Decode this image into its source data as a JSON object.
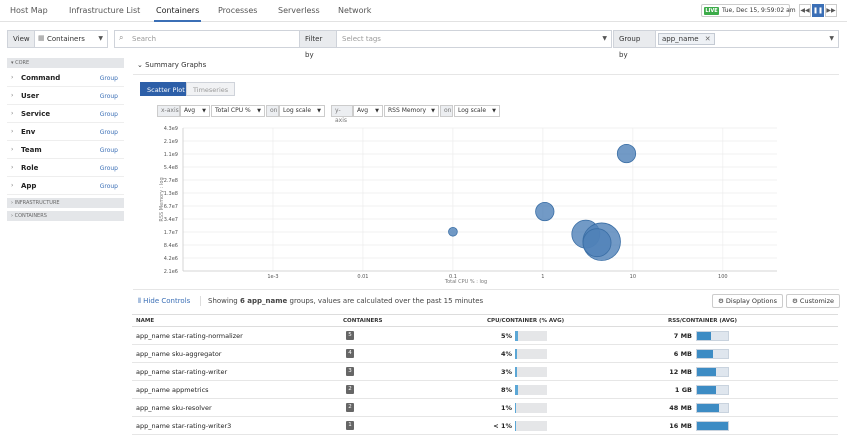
{
  "nav": {
    "tabs": [
      "Host Map",
      "Infrastructure List",
      "Containers",
      "Processes",
      "Serverless",
      "Network"
    ],
    "active_index": 2
  },
  "live": {
    "badge": "LIVE",
    "time": "Tue, Dec 15, 9:59:02 am"
  },
  "toolbar": {
    "view_label": "View",
    "view_value": "Containers",
    "search_placeholder": "Search",
    "filter_label": "Filter by",
    "filter_placeholder": "Select tags",
    "group_label": "Group by",
    "group_tag": "app_name"
  },
  "sidebar": {
    "core_header": "CORE",
    "items": [
      {
        "name": "Command",
        "action": "Group"
      },
      {
        "name": "User",
        "action": "Group"
      },
      {
        "name": "Service",
        "action": "Group"
      },
      {
        "name": "Env",
        "action": "Group"
      },
      {
        "name": "Team",
        "action": "Group"
      },
      {
        "name": "Role",
        "action": "Group"
      },
      {
        "name": "App",
        "action": "Group"
      }
    ],
    "infra_header": "INFRASTRUCTURE",
    "containers_header": "CONTAINERS"
  },
  "summary": {
    "title": "Summary Graphs",
    "tabs": [
      "Scatter Plot",
      "Timeseries"
    ]
  },
  "axes_controls": {
    "x_label": "x-axis",
    "x_agg": "Avg",
    "x_metric": "Total CPU %",
    "x_on": "on",
    "x_scale": "Log scale",
    "y_label": "y-axis",
    "y_agg": "Avg",
    "y_metric": "RSS Memory",
    "y_on": "on",
    "y_scale": "Log scale"
  },
  "chart_data": {
    "type": "scatter",
    "x_scale": "log",
    "y_scale": "log",
    "xlabel": "Total CPU % : log",
    "ylabel": "RSS Memory : log",
    "x_ticks": [
      "1e-3",
      "0.01",
      "0.1",
      "1",
      "10",
      "100"
    ],
    "y_ticks": [
      "4.3e9",
      "2.1e9",
      "1.1e9",
      "5.4e8",
      "2.7e8",
      "1.3e8",
      "6.7e7",
      "3.4e7",
      "1.7e7",
      "8.4e6",
      "4.2e6",
      "2.1e6"
    ],
    "xlim": [
      0.0001,
      400
    ],
    "ylim": [
      2100000,
      4300000000
    ],
    "grid": true,
    "points": [
      {
        "x": 8.5,
        "y": 1100000000,
        "size": 3
      },
      {
        "x": 1.05,
        "y": 50000000,
        "size": 3
      },
      {
        "x": 0.1,
        "y": 17000000,
        "size": 1
      },
      {
        "x": 3.0,
        "y": 15000000,
        "size": 5
      },
      {
        "x": 4.5,
        "y": 10000000,
        "size": 7
      },
      {
        "x": 4.0,
        "y": 9500000,
        "size": 5
      }
    ],
    "point_color": "#4f81b8"
  },
  "controls": {
    "hide": "Hide Controls",
    "showing_prefix": "Showing",
    "showing_count": "6 app_name",
    "showing_suffix": "groups, values are calculated over the past 15 minutes",
    "display_options": "Display Options",
    "customize": "Customize"
  },
  "table": {
    "headers": [
      "NAME",
      "CONTAINERS",
      "CPU/CONTAINER (% AVG)",
      "RSS/CONTAINER (AVG)"
    ],
    "rows": [
      {
        "name": "app_name star-rating-normalizer",
        "containers": "5",
        "cpu": "5%",
        "cpu_frac": 0.08,
        "rss": "7 MB",
        "rss_frac": 0.45
      },
      {
        "name": "app_name sku-aggregator",
        "containers": "4",
        "cpu": "4%",
        "cpu_frac": 0.07,
        "rss": "6 MB",
        "rss_frac": 0.5
      },
      {
        "name": "app_name star-rating-writer",
        "containers": "3",
        "cpu": "3%",
        "cpu_frac": 0.06,
        "rss": "12 MB",
        "rss_frac": 0.62
      },
      {
        "name": "app_name appmetrics",
        "containers": "2",
        "cpu": "8%",
        "cpu_frac": 0.1,
        "rss": "1 GB",
        "rss_frac": 0.6
      },
      {
        "name": "app_name sku-resolver",
        "containers": "2",
        "cpu": "1%",
        "cpu_frac": 0.03,
        "rss": "48 MB",
        "rss_frac": 0.7
      },
      {
        "name": "app_name star-rating-writer3",
        "containers": "1",
        "cpu": "< 1%",
        "cpu_frac": 0.01,
        "rss": "16 MB",
        "rss_frac": 1.0
      }
    ]
  }
}
